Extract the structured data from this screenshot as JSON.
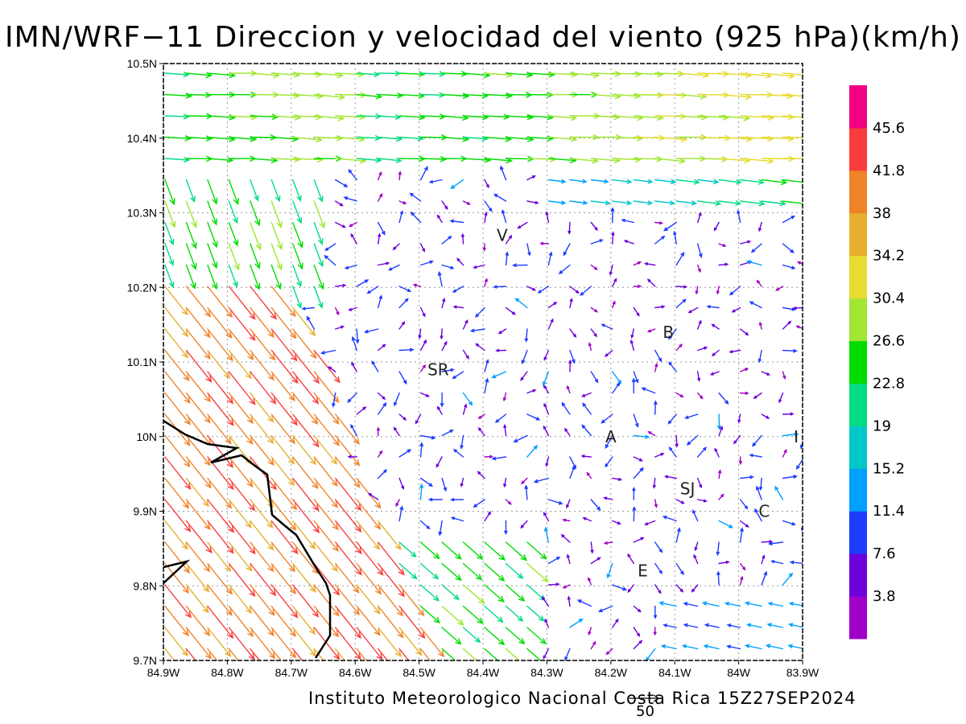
{
  "title": "IMN/WRF−11 Direccion y velocidad del viento (925 hPa)(km/h)",
  "footer": "Instituto Meteorologico Nacional Costa Rica 15Z27SEP2024",
  "reference_vector_label": "50",
  "chart_data": {
    "type": "map",
    "variable": "wind direction and speed",
    "pressure_level": "925 hPa",
    "units": "km/h",
    "x_ticks": [
      "84.9W",
      "84.8W",
      "84.7W",
      "84.6W",
      "84.5W",
      "84.4W",
      "84.3W",
      "84.2W",
      "84.1W",
      "84W",
      "83.9W"
    ],
    "y_ticks": [
      "10.5N",
      "10.4N",
      "10.3N",
      "10.2N",
      "10.1N",
      "10N",
      "9.9N",
      "9.8N",
      "9.7N"
    ],
    "xlim": [
      -84.9,
      -83.9
    ],
    "ylim": [
      9.7,
      10.5
    ],
    "grid": true,
    "city_labels": [
      {
        "name": "V",
        "lon": -84.37,
        "lat": 10.27
      },
      {
        "name": "B",
        "lon": -84.11,
        "lat": 10.14
      },
      {
        "name": "SR",
        "lon": -84.47,
        "lat": 10.09
      },
      {
        "name": "A",
        "lon": -84.2,
        "lat": 10.0
      },
      {
        "name": "I",
        "lon": -83.91,
        "lat": 10.0
      },
      {
        "name": "SJ",
        "lon": -84.08,
        "lat": 9.93
      },
      {
        "name": "C",
        "lon": -83.96,
        "lat": 9.9
      },
      {
        "name": "E",
        "lon": -84.15,
        "lat": 9.82
      }
    ],
    "colorbar": {
      "labels": [
        "3.8",
        "7.6",
        "11.4",
        "15.2",
        "19",
        "22.8",
        "26.6",
        "30.4",
        "34.2",
        "38",
        "41.8",
        "45.6"
      ],
      "colors": [
        "#a000c8",
        "#6e00dc",
        "#1e3cff",
        "#00a0ff",
        "#00c8c8",
        "#00dc82",
        "#00dc00",
        "#a0e632",
        "#e6dc32",
        "#e6af2d",
        "#f08228",
        "#fa3c3c",
        "#f00082"
      ]
    },
    "wind_regions": [
      {
        "region": "northern strip (lat 10.4-10.5)",
        "direction": "toward east",
        "speed_range_kmh": [
          15,
          36
        ]
      },
      {
        "region": "southwest lowlands (lon 84.9-84.65W, lat 9.7-10.2)",
        "direction": "toward southeast",
        "speed_range_kmh": [
          34,
          45
        ]
      },
      {
        "region": "central and eastern interior",
        "direction": "variable",
        "speed_range_kmh": [
          2,
          12
        ]
      }
    ]
  }
}
